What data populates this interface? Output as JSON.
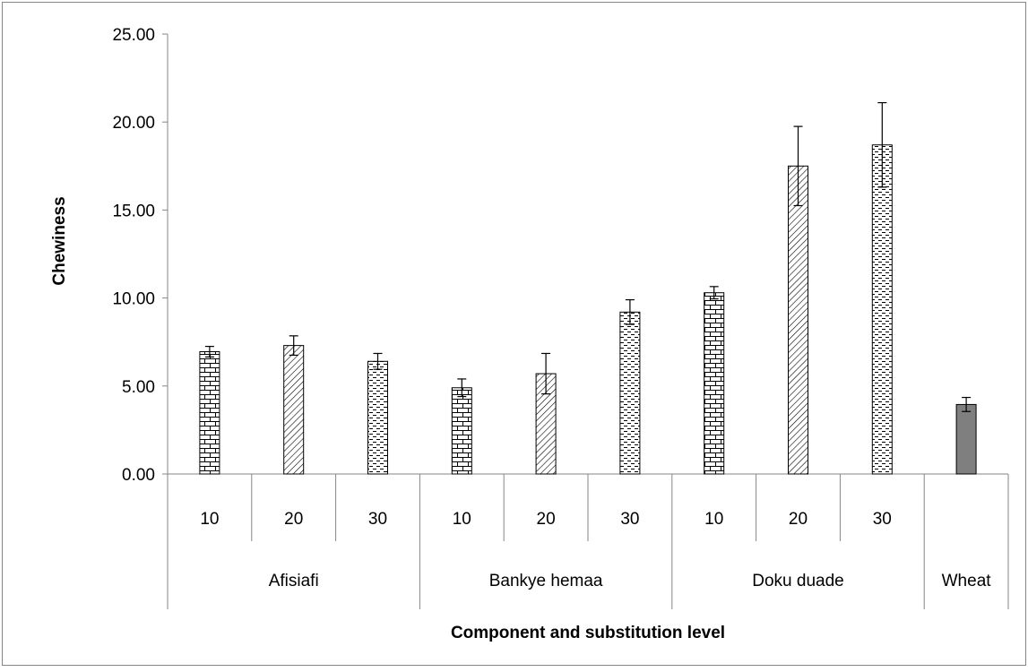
{
  "chart_data": {
    "type": "bar",
    "title": "",
    "xlabel": "Component and substitution level",
    "ylabel": "Chewiness",
    "ylim": [
      0,
      25
    ],
    "yticks": [
      "0.00",
      "5.00",
      "10.00",
      "15.00",
      "20.00",
      "25.00"
    ],
    "ytick_values": [
      0,
      5,
      10,
      15,
      20,
      25
    ],
    "grid": false,
    "legend": "none",
    "groups": [
      {
        "name": "Afisiafi",
        "levels": [
          "10",
          "20",
          "30"
        ]
      },
      {
        "name": "Bankye hemaa",
        "levels": [
          "10",
          "20",
          "30"
        ]
      },
      {
        "name": "Doku duade",
        "levels": [
          "10",
          "20",
          "30"
        ]
      },
      {
        "name": "Wheat",
        "levels": [
          ""
        ]
      }
    ],
    "bars": [
      {
        "group": "Afisiafi",
        "level": "10",
        "value": 6.95,
        "error": 0.3,
        "pattern": "brick"
      },
      {
        "group": "Afisiafi",
        "level": "20",
        "value": 7.3,
        "error": 0.55,
        "pattern": "diagonal"
      },
      {
        "group": "Afisiafi",
        "level": "30",
        "value": 6.4,
        "error": 0.45,
        "pattern": "dashed"
      },
      {
        "group": "Bankye hemaa",
        "level": "10",
        "value": 4.9,
        "error": 0.5,
        "pattern": "brick"
      },
      {
        "group": "Bankye hemaa",
        "level": "20",
        "value": 5.7,
        "error": 1.15,
        "pattern": "diagonal"
      },
      {
        "group": "Bankye hemaa",
        "level": "30",
        "value": 9.2,
        "error": 0.7,
        "pattern": "dashed"
      },
      {
        "group": "Doku duade",
        "level": "10",
        "value": 10.3,
        "error": 0.35,
        "pattern": "brick"
      },
      {
        "group": "Doku duade",
        "level": "20",
        "value": 17.5,
        "error": 2.25,
        "pattern": "diagonal"
      },
      {
        "group": "Doku duade",
        "level": "30",
        "value": 18.7,
        "error": 2.4,
        "pattern": "dashed"
      },
      {
        "group": "Wheat",
        "level": "",
        "value": 3.95,
        "error": 0.4,
        "pattern": "solid"
      }
    ],
    "colors": {
      "bar_stroke": "#000000",
      "solid_fill": "#7f7f7f",
      "axis": "#868686",
      "frame": "#868686"
    }
  }
}
